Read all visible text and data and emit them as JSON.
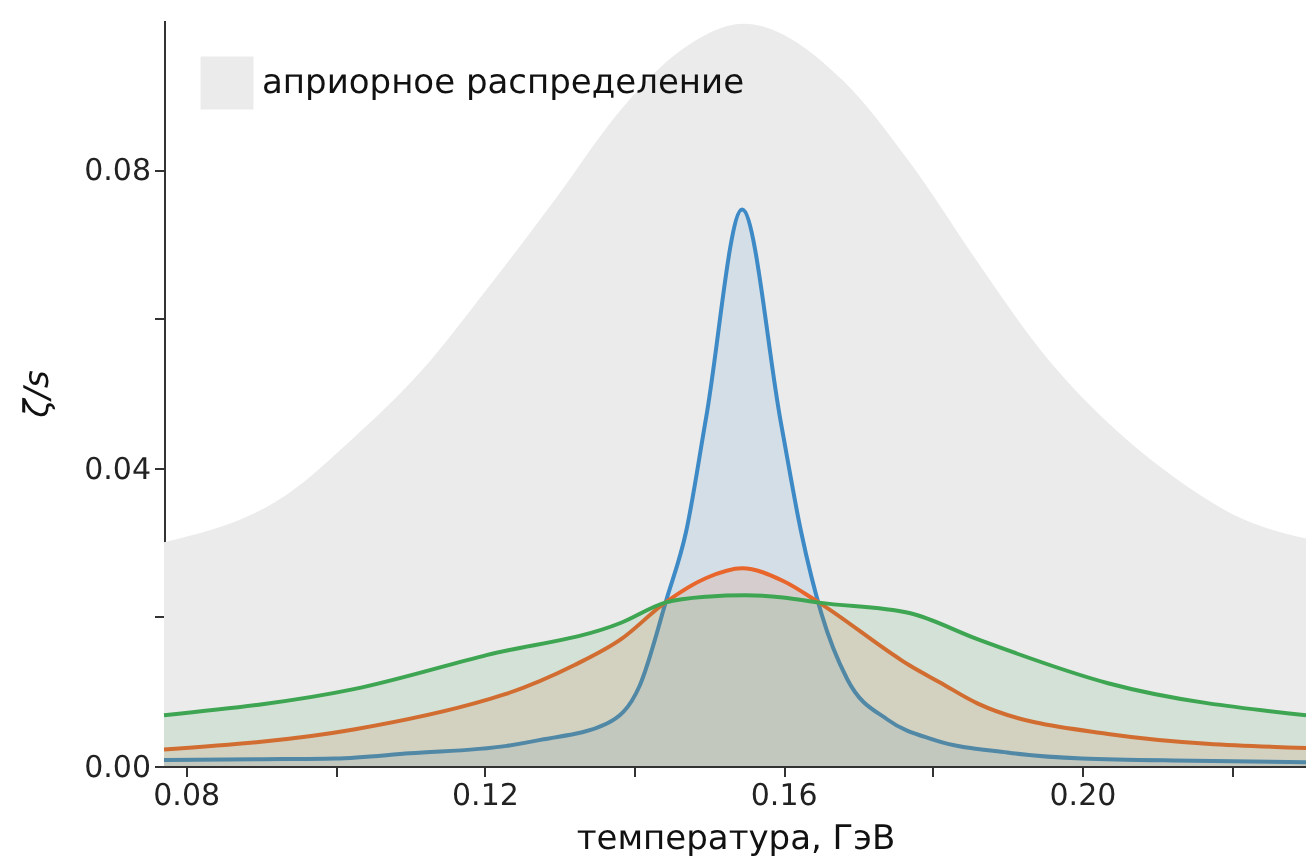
{
  "chart_data": {
    "type": "area",
    "xlabel": "температура, ГэВ",
    "ylabel": "ζ/s",
    "xlim": [
      0.0771,
      0.23
    ],
    "ylim": [
      0,
      0.1
    ],
    "xticks": [
      {
        "value": 0.08,
        "label": "0.08"
      },
      {
        "value": 0.1,
        "label": null
      },
      {
        "value": 0.12,
        "label": "0.12"
      },
      {
        "value": 0.14,
        "label": null
      },
      {
        "value": 0.16,
        "label": "0.16"
      },
      {
        "value": 0.18,
        "label": null
      },
      {
        "value": 0.2,
        "label": "0.20"
      },
      {
        "value": 0.22,
        "label": null
      }
    ],
    "yticks": [
      {
        "value": 0,
        "label": "0.00"
      },
      {
        "value": 0.02,
        "label": null
      },
      {
        "value": 0.04,
        "label": "0.04"
      },
      {
        "value": 0.06,
        "label": null
      },
      {
        "value": 0.08,
        "label": "0.08"
      }
    ],
    "grid": false,
    "legend": "top left",
    "series": [
      {
        "name": "априорное распределение",
        "color": "#ebebeb",
        "x": [
          0.0771,
          0.0937,
          0.1025,
          0.1116,
          0.1204,
          0.1295,
          0.1383,
          0.1464,
          0.1547,
          0.168,
          0.1769,
          0.186,
          0.1945,
          0.2035,
          0.2125,
          0.2213,
          0.23
        ],
        "values": [
          0.03,
          0.0365,
          0.044,
          0.053,
          0.064,
          0.076,
          0.088,
          0.096,
          0.0995,
          0.0919,
          0.081,
          0.0676,
          0.0557,
          0.046,
          0.0386,
          0.0332,
          0.0305
        ]
      },
      {
        "color": "#3d8ac6",
        "x": [
          0.0771,
          0.09,
          0.1,
          0.11,
          0.123,
          0.1275,
          0.1364,
          0.1408,
          0.1444,
          0.147,
          0.1497,
          0.1545,
          0.1597,
          0.1624,
          0.1651,
          0.1686,
          0.174,
          0.1802,
          0.19,
          0.2,
          0.215,
          0.23
        ],
        "values": [
          0.0008,
          0.0009,
          0.001,
          0.0017,
          0.0027,
          0.0035,
          0.0057,
          0.0108,
          0.0224,
          0.0314,
          0.0468,
          0.0746,
          0.046,
          0.0314,
          0.0205,
          0.0116,
          0.0062,
          0.0035,
          0.0018,
          0.001,
          0.0007,
          0.0005
        ]
      },
      {
        "color": "#e8662c",
        "x": [
          0.0771,
          0.1025,
          0.1204,
          0.123,
          0.132,
          0.1383,
          0.1442,
          0.1497,
          0.1545,
          0.16,
          0.1648,
          0.1758,
          0.1769,
          0.181,
          0.186,
          0.2035,
          0.23
        ],
        "values": [
          0.0022,
          0.0049,
          0.0089,
          0.0097,
          0.0135,
          0.017,
          0.0219,
          0.0252,
          0.0265,
          0.0248,
          0.0219,
          0.0142,
          0.0135,
          0.0112,
          0.0084,
          0.0043,
          0.0024
        ]
      },
      {
        "color": "#3ea652",
        "x": [
          0.0771,
          0.1025,
          0.1204,
          0.1383,
          0.1442,
          0.1497,
          0.155,
          0.16,
          0.1648,
          0.1769,
          0.186,
          0.2035,
          0.23
        ],
        "values": [
          0.0068,
          0.0103,
          0.0149,
          0.0192,
          0.0219,
          0.0227,
          0.0229,
          0.0226,
          0.0219,
          0.0205,
          0.017,
          0.0111,
          0.0068
        ]
      }
    ]
  }
}
